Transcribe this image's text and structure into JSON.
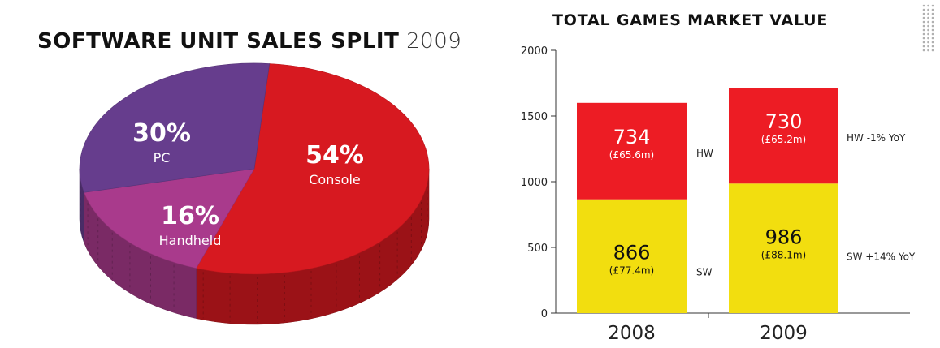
{
  "chart_data": [
    {
      "type": "pie",
      "title": "SOFTWARE UNIT SALES SPLIT",
      "title_year": "2009",
      "slices": [
        {
          "label": "Console",
          "value": 54,
          "display": "54%",
          "color": "#d71920"
        },
        {
          "label": "Handheld",
          "value": 16,
          "display": "16%",
          "color": "#a93a8c"
        },
        {
          "label": "PC",
          "value": 30,
          "display": "30%",
          "color": "#663d8d"
        }
      ]
    },
    {
      "type": "bar",
      "stacked": true,
      "title": "TOTAL GAMES MARKET VALUE",
      "categories": [
        "2008",
        "2009"
      ],
      "series": [
        {
          "name": "SW",
          "color": "#f2de0f",
          "values": [
            866,
            986
          ],
          "sub_labels": [
            "(£77.4m)",
            "(£88.1m)"
          ],
          "side_labels": [
            "SW",
            "SW +14% YoY"
          ]
        },
        {
          "name": "HW",
          "color": "#ed1c24",
          "values": [
            734,
            730
          ],
          "sub_labels": [
            "(£65.6m)",
            "(£65.2m)"
          ],
          "side_labels": [
            "HW",
            "HW -1% YoY"
          ]
        }
      ],
      "ylim": [
        0,
        2000
      ],
      "yticks": [
        "0",
        "500",
        "1000",
        "1500",
        "2000"
      ],
      "grid": false
    }
  ]
}
